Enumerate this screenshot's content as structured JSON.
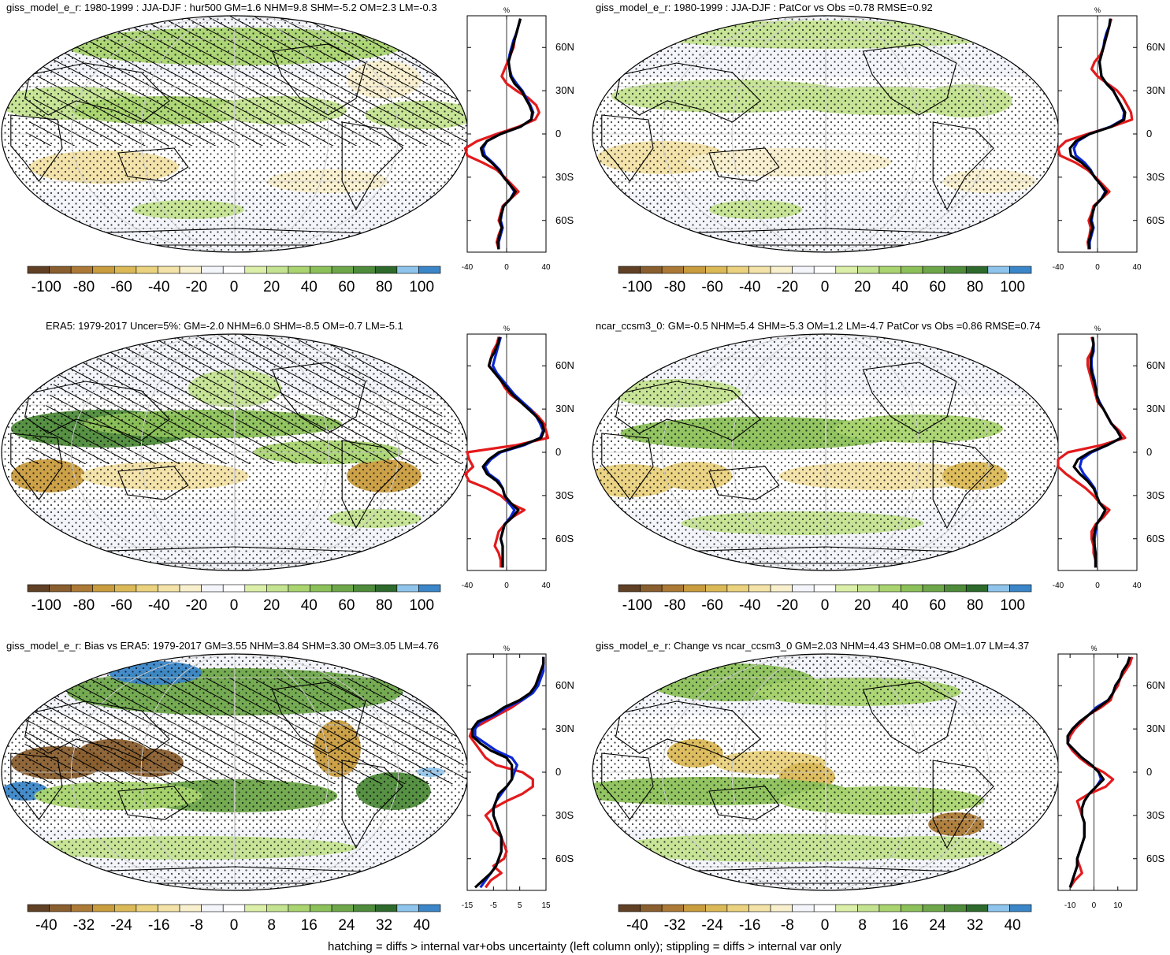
{
  "footer": "hatching = diffs > internal var+obs uncertainty (left column only); stippling = diffs > internal var only",
  "colors": {
    "scale": [
      "#614126",
      "#8a5f2f",
      "#ac7a36",
      "#c99c3e",
      "#dbb957",
      "#ead27e",
      "#f3e3a8",
      "#f8efcd",
      "#f3f5fa",
      "#ffffff",
      "#dcefa9",
      "#c4e391",
      "#a9d46f",
      "#8cc15a",
      "#6ea74a",
      "#4e8b3a",
      "#2d6a2c",
      "#8fc5ec",
      "#3b86c8"
    ],
    "obs": "#e31a1c",
    "model": "#0a26d6",
    "mean": "#000000",
    "land_outline": "#000000"
  },
  "chart_data": [
    {
      "type": "heatmap",
      "title": "giss_model_e_r: 1980-1999 : JJA-DJF : hur500 GM=1.6 NHM=9.8 SHM=-5.2 OM=2.3 LM=-0.3",
      "colorbar_ticks": [
        "-100",
        "-80",
        "-60",
        "-40",
        "-20",
        "0",
        "20",
        "40",
        "60",
        "80",
        "100"
      ],
      "zonal": {
        "unit_label": "%",
        "x_ticks": [
          "-40",
          "0",
          "40"
        ],
        "xlim": [
          -40,
          40
        ],
        "y_ticks": [
          "60N",
          "30N",
          "0",
          "30S",
          "60S"
        ],
        "lat": [
          80,
          75,
          70,
          65,
          60,
          55,
          50,
          45,
          40,
          35,
          30,
          25,
          20,
          15,
          10,
          5,
          0,
          -5,
          -10,
          -15,
          -20,
          -25,
          -30,
          -35,
          -40,
          -45,
          -50,
          -55,
          -60,
          -65,
          -70,
          -75,
          -80
        ],
        "series": [
          {
            "color": "obs",
            "values": [
              14,
              12,
              10,
              8,
              7,
              4,
              1,
              -2,
              -5,
              0,
              10,
              22,
              30,
              33,
              29,
              12,
              -10,
              -30,
              -42,
              -40,
              -24,
              -10,
              -2,
              5,
              12,
              4,
              -4,
              -6,
              -8,
              -5,
              -8,
              -10,
              -8
            ]
          },
          {
            "color": "model",
            "values": [
              14,
              12,
              10,
              7,
              5,
              3,
              2,
              3,
              5,
              10,
              16,
              20,
              24,
              27,
              25,
              14,
              -6,
              -20,
              -24,
              -22,
              -14,
              -7,
              -3,
              3,
              8,
              4,
              -3,
              -5,
              -6,
              -4,
              -6,
              -8,
              -8
            ]
          },
          {
            "color": "mean",
            "values": [
              14,
              12,
              10,
              8,
              6,
              4,
              2,
              3,
              4,
              8,
              15,
              19,
              23,
              26,
              25,
              14,
              -6,
              -20,
              -26,
              -24,
              -15,
              -8,
              -3,
              3,
              9,
              4,
              -3,
              -5,
              -7,
              -5,
              -7,
              -9,
              -8
            ]
          }
        ]
      }
    },
    {
      "type": "heatmap",
      "title": "giss_model_e_r: 1980-1999 : JJA-DJF : PatCor vs Obs =0.78 RMSE=0.92",
      "colorbar_ticks": [
        "-100",
        "-80",
        "-60",
        "-40",
        "-20",
        "0",
        "20",
        "40",
        "60",
        "80",
        "100"
      ],
      "zonal": {
        "unit_label": "%",
        "x_ticks": [
          "-40",
          "0",
          "40"
        ],
        "xlim": [
          -40,
          40
        ],
        "y_ticks": [
          "60N",
          "30N",
          "0",
          "30S",
          "60S"
        ],
        "lat": [
          80,
          75,
          70,
          65,
          60,
          55,
          50,
          45,
          40,
          35,
          30,
          25,
          20,
          15,
          10,
          5,
          0,
          -5,
          -10,
          -15,
          -20,
          -25,
          -30,
          -35,
          -40,
          -45,
          -50,
          -55,
          -60,
          -65,
          -70,
          -75,
          -80
        ],
        "series": [
          {
            "color": "obs",
            "values": [
              14,
              12,
              10,
              8,
              6,
              3,
              -3,
              -6,
              0,
              10,
              20,
              26,
              30,
              34,
              35,
              14,
              -10,
              -32,
              -40,
              -38,
              -22,
              -10,
              -2,
              5,
              12,
              4,
              -4,
              -6,
              -9,
              -7,
              -8,
              -10,
              -9
            ]
          },
          {
            "color": "model",
            "values": [
              13,
              12,
              9,
              7,
              6,
              4,
              2,
              3,
              4,
              9,
              16,
              20,
              24,
              27,
              26,
              13,
              -8,
              -20,
              -24,
              -22,
              -13,
              -7,
              -3,
              3,
              8,
              4,
              -3,
              -5,
              -6,
              -4,
              -6,
              -8,
              -8
            ]
          },
          {
            "color": "mean",
            "values": [
              13,
              12,
              10,
              8,
              6,
              4,
              2,
              3,
              4,
              9,
              16,
              20,
              24,
              28,
              27,
              14,
              -8,
              -22,
              -28,
              -27,
              -16,
              -8,
              -3,
              3,
              9,
              4,
              -3,
              -5,
              -7,
              -5,
              -7,
              -9,
              -8
            ]
          }
        ]
      }
    },
    {
      "type": "heatmap",
      "title": "ERA5: 1979-2017 Uncer=5%: GM=-2.0 NHM=6.0 SHM=-8.5 OM=-0.7 LM=-5.1",
      "colorbar_ticks": [
        "-100",
        "-80",
        "-60",
        "-40",
        "-20",
        "0",
        "20",
        "40",
        "60",
        "80",
        "100"
      ],
      "zonal": {
        "unit_label": "%",
        "x_ticks": [
          "-40",
          "0",
          "40"
        ],
        "xlim": [
          -40,
          40
        ],
        "y_ticks": [
          "60N",
          "30N",
          "0",
          "30S",
          "60S"
        ],
        "lat": [
          80,
          75,
          70,
          65,
          60,
          55,
          50,
          45,
          40,
          35,
          30,
          25,
          20,
          15,
          10,
          5,
          0,
          -5,
          -10,
          -15,
          -20,
          -25,
          -30,
          -35,
          -40,
          -45,
          -50,
          -55,
          -60,
          -65,
          -70,
          -75,
          -80
        ],
        "series": [
          {
            "color": "obs",
            "values": [
              -8,
              -10,
              -14,
              -16,
              -18,
              -12,
              -6,
              -2,
              4,
              14,
              24,
              32,
              38,
              40,
              42,
              10,
              -40,
              -38,
              -34,
              -42,
              -38,
              -20,
              -6,
              2,
              18,
              6,
              -2,
              -8,
              -10,
              -12,
              -8,
              -6,
              -6
            ]
          },
          {
            "color": "model",
            "values": [
              -6,
              -8,
              -10,
              -12,
              -14,
              -10,
              -4,
              2,
              8,
              16,
              24,
              30,
              34,
              37,
              34,
              18,
              -6,
              -16,
              -22,
              -18,
              -8,
              -4,
              -2,
              2,
              8,
              4,
              -2,
              -4,
              -6,
              -4,
              -4,
              -4,
              -4
            ]
          },
          {
            "color": "mean",
            "values": [
              -7,
              -9,
              -12,
              -16,
              -18,
              -12,
              -6,
              0,
              6,
              14,
              22,
              30,
              36,
              38,
              35,
              16,
              -8,
              -18,
              -24,
              -20,
              -10,
              -4,
              -2,
              4,
              12,
              6,
              -2,
              -4,
              -6,
              -4,
              -4,
              -4,
              -4
            ]
          }
        ]
      }
    },
    {
      "type": "heatmap",
      "title": "ncar_ccsm3_0: GM=-0.5 NHM=5.4 SHM=-5.3 OM=1.2 LM=-4.7 PatCor vs Obs =0.86 RMSE=0.74",
      "colorbar_ticks": [
        "-100",
        "-80",
        "-60",
        "-40",
        "-20",
        "0",
        "20",
        "40",
        "60",
        "80",
        "100"
      ],
      "zonal": {
        "unit_label": "%",
        "x_ticks": [
          "-40",
          "0",
          "40"
        ],
        "xlim": [
          -40,
          40
        ],
        "y_ticks": [
          "60N",
          "30N",
          "0",
          "30S",
          "60S"
        ],
        "lat": [
          80,
          75,
          70,
          65,
          60,
          55,
          50,
          45,
          40,
          35,
          30,
          25,
          20,
          15,
          10,
          5,
          0,
          -5,
          -10,
          -15,
          -20,
          -25,
          -30,
          -35,
          -40,
          -45,
          -50,
          -55,
          -60,
          -65,
          -70,
          -75,
          -80
        ],
        "series": [
          {
            "color": "obs",
            "values": [
              -6,
              -4,
              -6,
              -10,
              -10,
              -8,
              -6,
              -4,
              -2,
              0,
              6,
              10,
              14,
              22,
              28,
              4,
              -30,
              -40,
              -40,
              -32,
              -22,
              -12,
              -4,
              2,
              12,
              6,
              -2,
              -6,
              -6,
              -4,
              -4,
              -2,
              -2
            ]
          },
          {
            "color": "model",
            "values": [
              -5,
              -4,
              -4,
              -6,
              -6,
              -5,
              -3,
              -2,
              -1,
              2,
              6,
              10,
              14,
              20,
              24,
              10,
              -6,
              -16,
              -18,
              -14,
              -8,
              -3,
              -1,
              2,
              8,
              4,
              -1,
              -2,
              -3,
              -3,
              -2,
              -2,
              -2
            ]
          },
          {
            "color": "mean",
            "values": [
              -5,
              -4,
              -5,
              -7,
              -7,
              -6,
              -4,
              -2,
              -1,
              1,
              6,
              10,
              14,
              20,
              24,
              10,
              -8,
              -20,
              -24,
              -18,
              -10,
              -4,
              -1,
              2,
              8,
              4,
              -1,
              -3,
              -4,
              -3,
              -2,
              -2,
              -2
            ]
          }
        ]
      }
    },
    {
      "type": "heatmap",
      "title": "giss_model_e_r: Bias vs ERA5: 1979-2017 GM=3.55 NHM=3.84 SHM=3.30 OM=3.05 LM=4.76",
      "colorbar_ticks": [
        "-40",
        "-32",
        "-24",
        "-16",
        "-8",
        "0",
        "8",
        "16",
        "24",
        "32",
        "40"
      ],
      "zonal": {
        "unit_label": "%",
        "x_ticks": [
          "-15",
          "-5",
          "5",
          "15"
        ],
        "xlim": [
          -15,
          15
        ],
        "y_ticks": [
          "60N",
          "30N",
          "0",
          "30S",
          "60S"
        ],
        "lat": [
          80,
          75,
          70,
          65,
          60,
          55,
          50,
          45,
          40,
          35,
          30,
          25,
          20,
          15,
          10,
          5,
          0,
          -5,
          -10,
          -15,
          -20,
          -25,
          -30,
          -35,
          -40,
          -45,
          -50,
          -55,
          -60,
          -65,
          -70,
          -75,
          -80
        ],
        "series": [
          {
            "color": "obs",
            "values": [
              14,
              14,
              13,
              12,
              11,
              9,
              6,
              2,
              -3,
              -8,
              -13,
              -14,
              -12,
              -10,
              -8,
              -4,
              6,
              10,
              10,
              6,
              0,
              -5,
              -8,
              -6,
              -5,
              -2,
              -1,
              0,
              -1,
              -5,
              -2,
              -6,
              -8
            ]
          },
          {
            "color": "model",
            "values": [
              14,
              14,
              14,
              13,
              12,
              10,
              6,
              0,
              -4,
              -10,
              -12,
              -12,
              -8,
              -4,
              2,
              4,
              3,
              2,
              0,
              -2,
              -4,
              -5,
              -5,
              -4,
              -3,
              -2,
              -2,
              -2,
              -3,
              -4,
              -6,
              -8,
              -10
            ]
          },
          {
            "color": "mean",
            "values": [
              14,
              14,
              13,
              12,
              11,
              9,
              5,
              -1,
              -5,
              -11,
              -13,
              -13,
              -10,
              -6,
              0,
              2,
              2,
              2,
              0,
              -3,
              -4,
              -5,
              -5,
              -4,
              -3,
              -2,
              -2,
              -2,
              -3,
              -4,
              -6,
              -9,
              -12
            ]
          }
        ]
      }
    },
    {
      "type": "heatmap",
      "title": "giss_model_e_r: Change vs ncar_ccsm3_0 GM=2.03 NHM=4.43 SHM=0.08 OM=1.07 LM=4.37",
      "colorbar_ticks": [
        "-40",
        "-32",
        "-24",
        "-16",
        "-8",
        "0",
        "8",
        "16",
        "24",
        "32",
        "40"
      ],
      "zonal": {
        "unit_label": "%",
        "x_ticks": [
          "-10",
          "0",
          "10"
        ],
        "xlim": [
          -15,
          18
        ],
        "y_ticks": [
          "60N",
          "30N",
          "0",
          "30S",
          "60S"
        ],
        "lat": [
          80,
          75,
          70,
          65,
          60,
          55,
          50,
          45,
          40,
          35,
          30,
          25,
          20,
          15,
          10,
          5,
          0,
          -5,
          -10,
          -15,
          -20,
          -25,
          -30,
          -35,
          -40,
          -45,
          -50,
          -55,
          -60,
          -65,
          -70,
          -75,
          -80
        ],
        "series": [
          {
            "color": "obs",
            "values": [
              16,
              15,
              13,
              11,
              10,
              8,
              7,
              3,
              -2,
              -5,
              -8,
              -10,
              -11,
              -9,
              -6,
              -2,
              4,
              8,
              5,
              -2,
              -7,
              -6,
              -5,
              -4,
              -4,
              -4,
              -5,
              -6,
              -7,
              -6,
              -5,
              -8,
              -10
            ]
          },
          {
            "color": "model",
            "values": [
              15,
              14,
              12,
              11,
              9,
              8,
              6,
              1,
              -2,
              -6,
              -9,
              -11,
              -11,
              -8,
              -5,
              -1,
              2,
              3,
              1,
              -2,
              -4,
              -5,
              -5,
              -4,
              -4,
              -4,
              -5,
              -6,
              -7,
              -7,
              -8,
              -9,
              -10
            ]
          },
          {
            "color": "mean",
            "values": [
              15,
              14,
              12,
              11,
              9,
              8,
              6,
              2,
              -2,
              -6,
              -9,
              -11,
              -11,
              -8,
              -5,
              -1,
              2,
              4,
              1,
              -2,
              -4,
              -5,
              -5,
              -4,
              -4,
              -4,
              -5,
              -6,
              -7,
              -7,
              -8,
              -9,
              -10
            ]
          }
        ]
      }
    }
  ]
}
